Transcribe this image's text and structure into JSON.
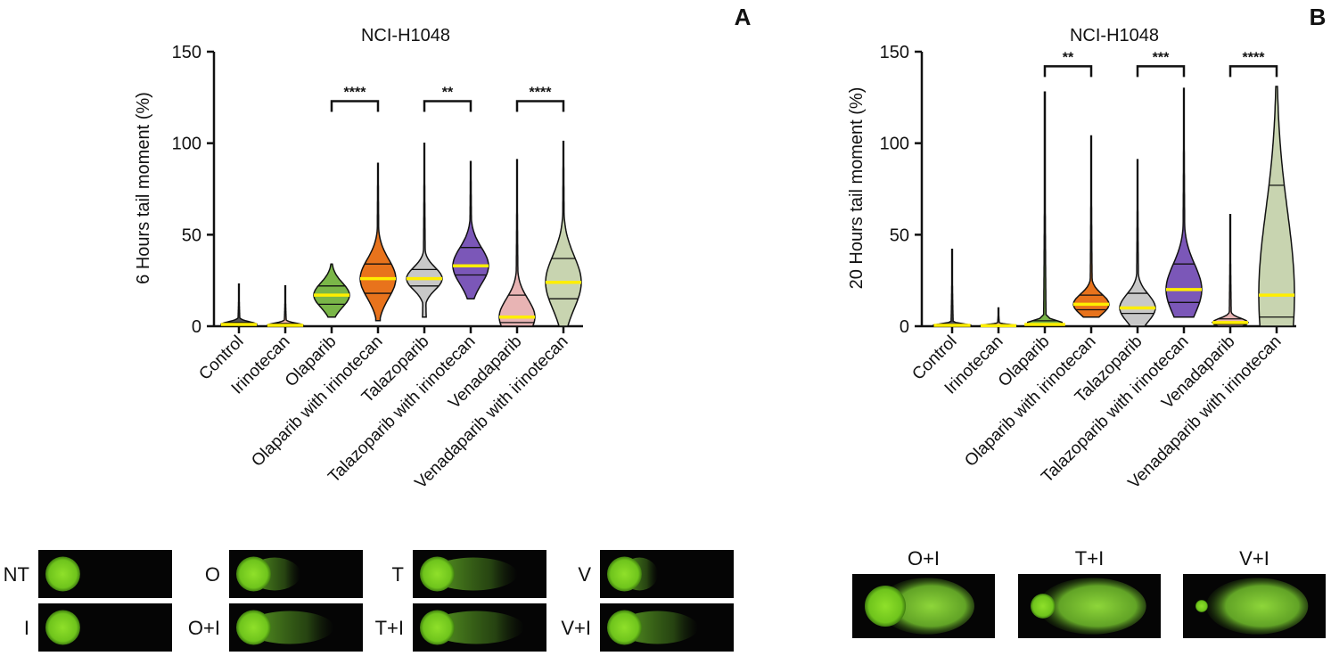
{
  "chart_data": [
    {
      "panel": "A",
      "type": "violin",
      "title": "NCI-H1048",
      "ylabel": "6 Hours tail moment (%)",
      "ylim": [
        0,
        150
      ],
      "yticks": [
        "0",
        "50",
        "100",
        "150"
      ],
      "categories": [
        "Control",
        "Irinotecan",
        "Olaparib",
        "Olaparib with irinotecan",
        "Talazoparib",
        "Talazoparib with irinotecan",
        "Venadaparib",
        "Venadaparib with irinotecan"
      ],
      "series": [
        {
          "min": 0,
          "max": 23,
          "q1": 0.3,
          "median": 1,
          "q3": 2,
          "color": "#555555"
        },
        {
          "min": 0,
          "max": 22,
          "q1": 0.2,
          "median": 0.5,
          "q3": 1.5,
          "color": "#f2b8a8"
        },
        {
          "min": 5,
          "max": 34,
          "q1": 12,
          "median": 17,
          "q3": 22,
          "color": "#7ab648"
        },
        {
          "min": 3,
          "max": 89,
          "q1": 18,
          "median": 26,
          "q3": 34,
          "color": "#e8731c"
        },
        {
          "min": 5,
          "max": 100,
          "q1": 22,
          "median": 26,
          "q3": 31,
          "color": "#c8c8c8"
        },
        {
          "min": 15,
          "max": 90,
          "q1": 28,
          "median": 33,
          "q3": 43,
          "color": "#7b57b8"
        },
        {
          "min": 0,
          "max": 91,
          "q1": 2,
          "median": 5,
          "q3": 17,
          "color": "#e8b4b4"
        },
        {
          "min": 0,
          "max": 101,
          "q1": 15,
          "median": 24,
          "q3": 37,
          "color": "#c8d4b0"
        }
      ],
      "comparisons": [
        {
          "from": 2,
          "to": 3,
          "label": "****",
          "y": 123
        },
        {
          "from": 4,
          "to": 5,
          "label": "**",
          "y": 123
        },
        {
          "from": 6,
          "to": 7,
          "label": "****",
          "y": 123
        }
      ]
    },
    {
      "panel": "B",
      "type": "violin",
      "title": "NCI-H1048",
      "ylabel": "20 Hours tail moment (%)",
      "ylim": [
        0,
        150
      ],
      "yticks": [
        "0",
        "50",
        "100",
        "150"
      ],
      "categories": [
        "Control",
        "Irinotecan",
        "Olaparib",
        "Olaparib with irinotecan",
        "Talazoparib",
        "Talazoparib with irinotecan",
        "Venadaparib",
        "Venadaparib with irinotecan"
      ],
      "series": [
        {
          "min": 0,
          "max": 42,
          "q1": 0.2,
          "median": 0.5,
          "q3": 1,
          "color": "#555555"
        },
        {
          "min": 0,
          "max": 10,
          "q1": 0.1,
          "median": 0.3,
          "q3": 0.6,
          "color": "#f2b8a8"
        },
        {
          "min": 0,
          "max": 128,
          "q1": 0.5,
          "median": 1,
          "q3": 3,
          "color": "#7ab648"
        },
        {
          "min": 5,
          "max": 104,
          "q1": 9,
          "median": 12,
          "q3": 17,
          "color": "#e8731c"
        },
        {
          "min": 0,
          "max": 91,
          "q1": 7,
          "median": 10,
          "q3": 18,
          "color": "#c8c8c8"
        },
        {
          "min": 5,
          "max": 130,
          "q1": 13,
          "median": 20,
          "q3": 34,
          "color": "#7b57b8"
        },
        {
          "min": 0,
          "max": 61,
          "q1": 1,
          "median": 2,
          "q3": 4,
          "color": "#e8b4b4"
        },
        {
          "min": 0,
          "max": 131,
          "q1": 5,
          "median": 17,
          "q3": 77,
          "color": "#c8d4b0"
        }
      ],
      "comparisons": [
        {
          "from": 2,
          "to": 3,
          "label": "**",
          "y": 142
        },
        {
          "from": 4,
          "to": 5,
          "label": "***",
          "y": 142
        },
        {
          "from": 6,
          "to": 7,
          "label": "****",
          "y": 142
        }
      ]
    }
  ],
  "comet_images": {
    "panel_a": [
      {
        "label": "NT",
        "tail": 0.0,
        "head": 0.18
      },
      {
        "label": "O",
        "tail": 0.35,
        "head": 0.22
      },
      {
        "label": "T",
        "tail": 0.6,
        "head": 0.22
      },
      {
        "label": "V",
        "tail": 0.25,
        "head": 0.2
      },
      {
        "label": "I",
        "tail": 0.05,
        "head": 0.18
      },
      {
        "label": "O+I",
        "tail": 0.6,
        "head": 0.24
      },
      {
        "label": "T+I",
        "tail": 0.65,
        "head": 0.22
      },
      {
        "label": "V+I",
        "tail": 0.55,
        "head": 0.26
      }
    ],
    "panel_b": [
      {
        "label": "O+I",
        "tail": 0.8,
        "head": 0.2
      },
      {
        "label": "T+I",
        "tail": 0.9,
        "head": 0.12
      },
      {
        "label": "V+I",
        "tail": 0.85,
        "head": 0.06
      }
    ]
  },
  "colors": {
    "median": "#ffee00",
    "axis": "#111111",
    "comet_bg": "#050505",
    "comet_green": "#7ed321"
  }
}
